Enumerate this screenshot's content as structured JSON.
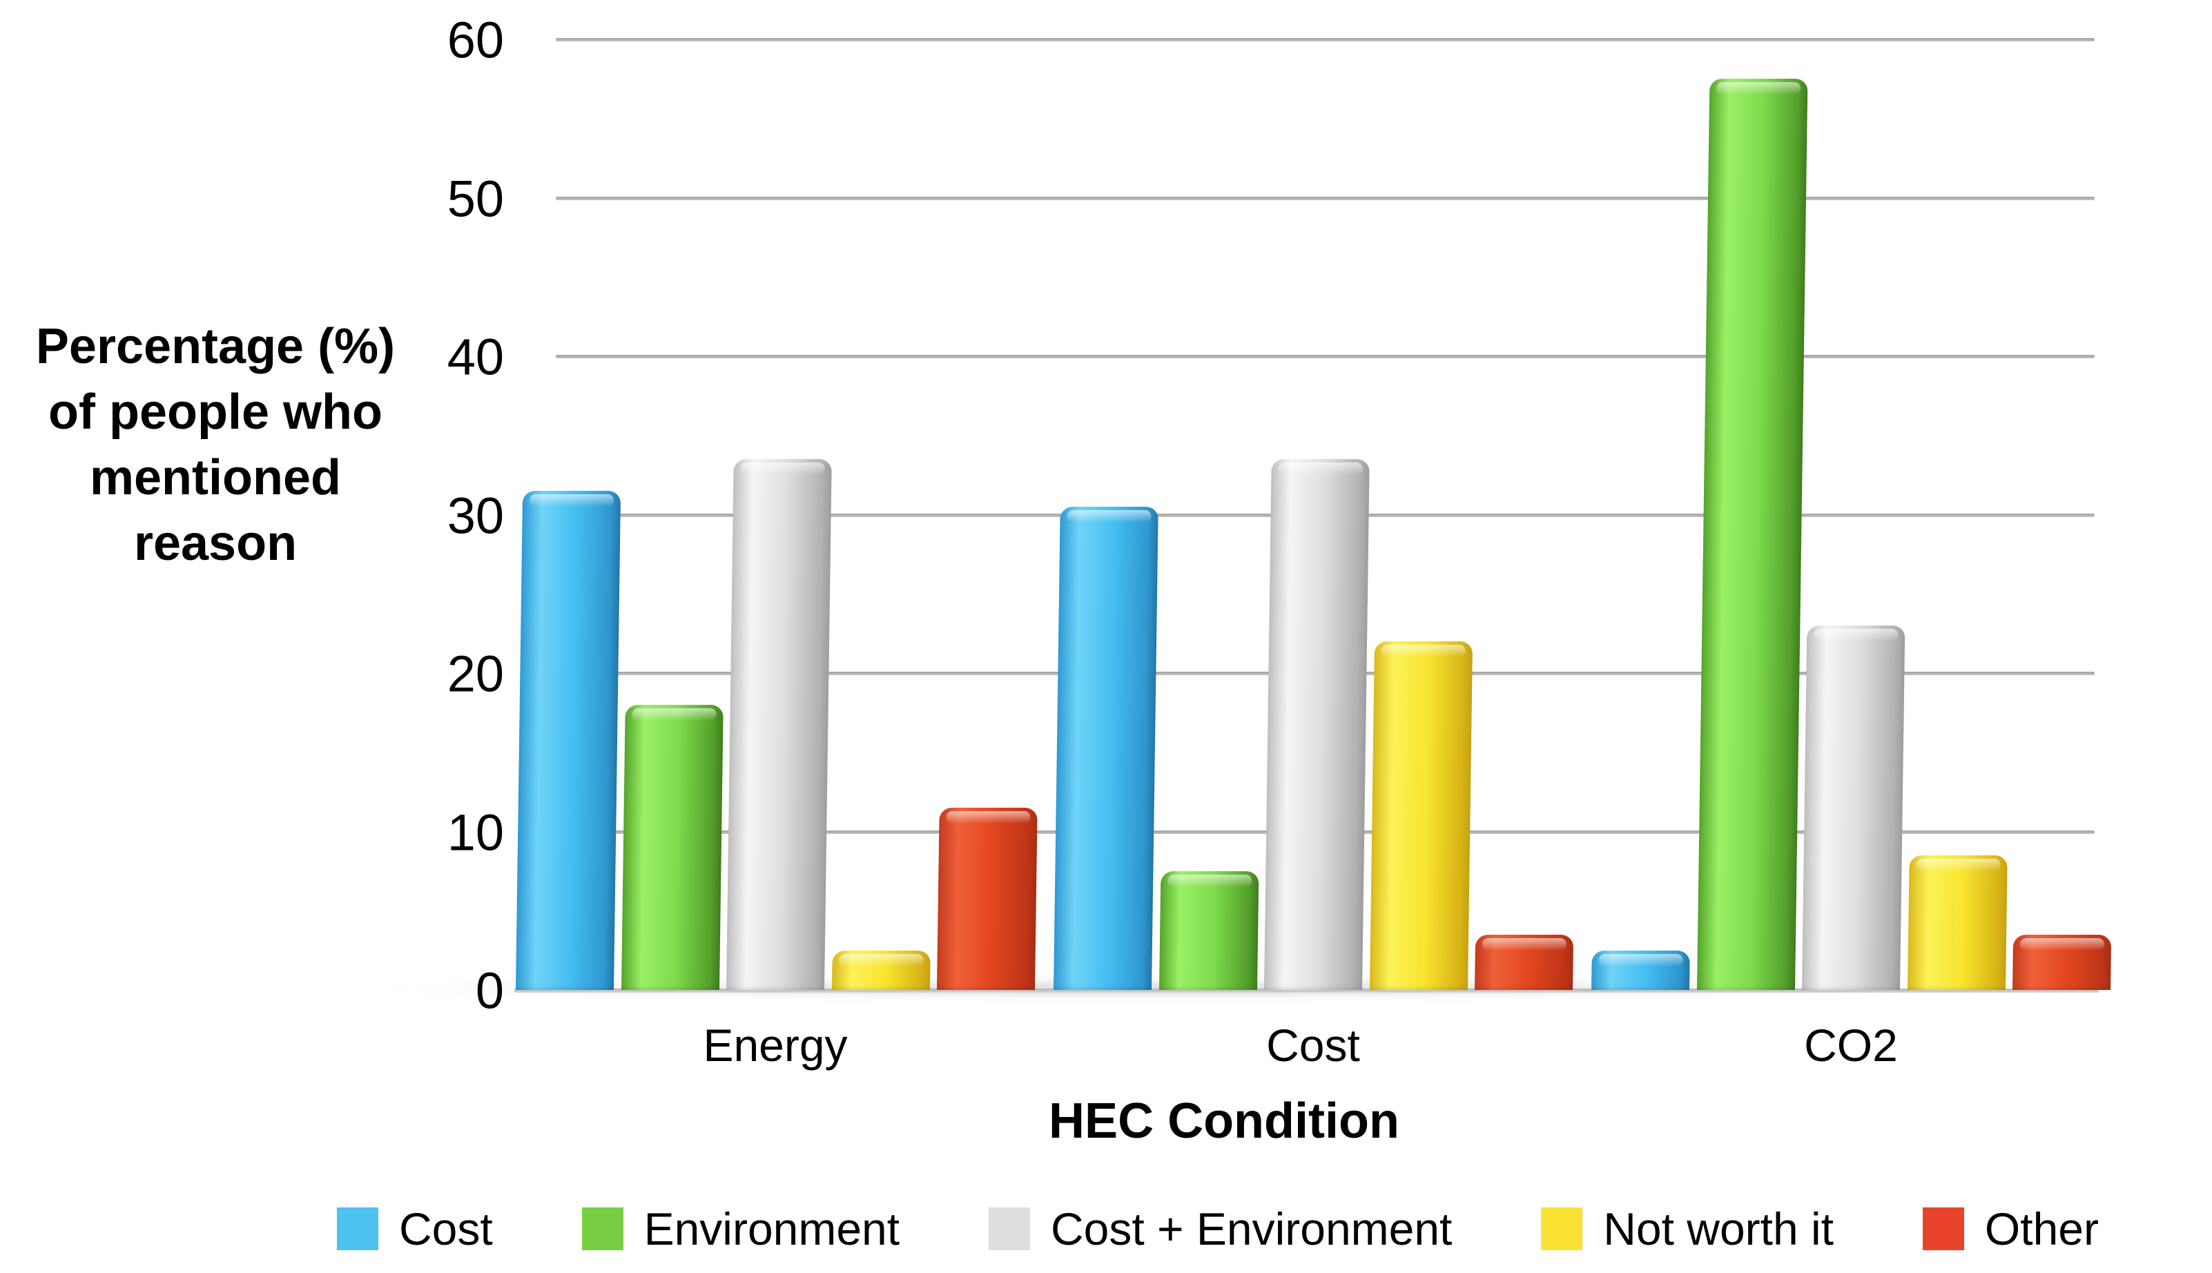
{
  "chart_data": {
    "type": "bar",
    "categories": [
      "Energy",
      "Cost",
      "CO2"
    ],
    "series": [
      {
        "name": "Cost",
        "color": "#4EC3F2",
        "gradient": {
          "edge_left": "#2F9AD4",
          "light": "#6FD4F8",
          "mid": "#45BEF2",
          "dark": "#2E97CF",
          "edge_right": "#2377A9"
        },
        "values": [
          31.5,
          30.5,
          2.5
        ]
      },
      {
        "name": "Environment",
        "color": "#79CF44",
        "gradient": {
          "edge_left": "#55A42B",
          "light": "#9AF065",
          "mid": "#7FDB4D",
          "dark": "#53A02A",
          "edge_right": "#3F7F1F"
        },
        "values": [
          18,
          7.5,
          57.5
        ]
      },
      {
        "name": "Cost + Environment",
        "color": "#DEDEDE",
        "gradient": {
          "edge_left": "#BFBFBF",
          "light": "#F5F5F5",
          "mid": "#DEDEDE",
          "dark": "#B3B3B3",
          "edge_right": "#9E9E9E"
        },
        "values": [
          33.5,
          33.5,
          23
        ]
      },
      {
        "name": "Not worth it",
        "color": "#F9E232",
        "gradient": {
          "edge_left": "#D9B91B",
          "light": "#FCF258",
          "mid": "#F8E52F",
          "dark": "#D9B516",
          "edge_right": "#C6A312"
        },
        "values": [
          2.5,
          22,
          8.5
        ]
      },
      {
        "name": "Other",
        "color": "#E8432B",
        "gradient": {
          "edge_left": "#C43C1E",
          "light": "#F0603A",
          "mid": "#E2461F",
          "dark": "#C03518",
          "edge_right": "#A92E13"
        },
        "values": [
          11.5,
          3.5,
          3.5
        ]
      }
    ],
    "xlabel": "HEC Condition",
    "ylabel": "Percentage (%) of people who mentioned reason",
    "ylabel_lines": [
      "Percentage (%)",
      "of people who",
      "mentioned",
      "reason"
    ],
    "ylim": [
      0,
      60
    ],
    "yticks": [
      60,
      50,
      40,
      30,
      20,
      10,
      0
    ],
    "grid": true,
    "gridline_color": "#b0b0b0",
    "legend_position": "bottom",
    "text_color": "#000000",
    "background_color": "#ffffff"
  }
}
